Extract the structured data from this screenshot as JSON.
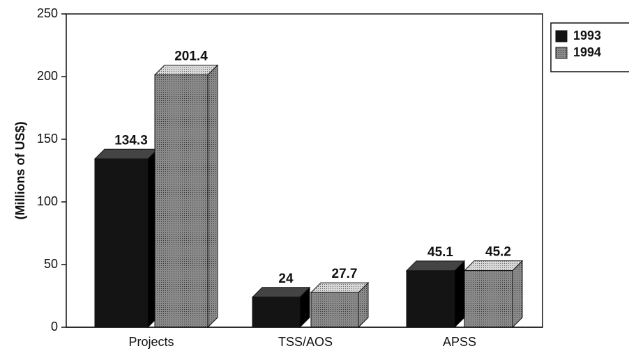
{
  "chart_data": {
    "type": "bar",
    "y_label": "(Millions of US$)",
    "categories": [
      "Projects",
      "TSS/AOS",
      "APSS"
    ],
    "series": [
      {
        "name": "1993",
        "color": "#141414",
        "values": [
          134.3,
          24,
          45.1
        ]
      },
      {
        "name": "1994",
        "color": "#7a7a7a",
        "values": [
          201.4,
          27.7,
          45.2
        ]
      }
    ],
    "ylim": [
      0,
      250
    ],
    "yticks": [
      0,
      50,
      100,
      150,
      200,
      250
    ],
    "legend": "right"
  }
}
